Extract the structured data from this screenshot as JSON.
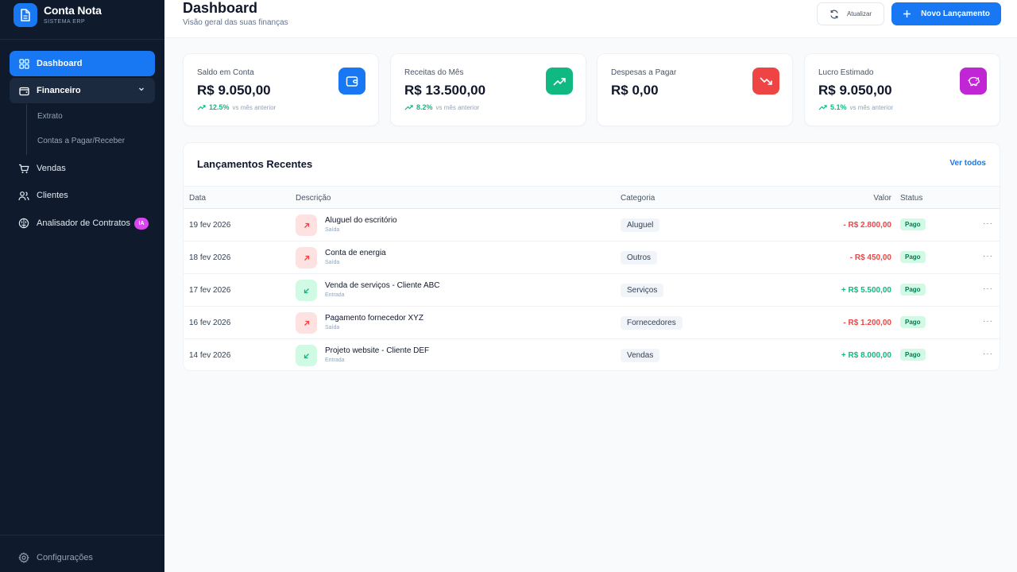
{
  "brand": {
    "name": "Conta Nota",
    "subtitle": "SISTEMA ERP"
  },
  "sidebar": {
    "items": [
      {
        "label": "Dashboard",
        "icon": "grid-icon"
      },
      {
        "label": "Financeiro",
        "icon": "wallet-icon"
      },
      {
        "label": "Vendas",
        "icon": "cart-icon"
      },
      {
        "label": "Clientes",
        "icon": "users-icon"
      },
      {
        "label": "Analisador de Contratos",
        "icon": "brain-icon",
        "badge": "IA"
      }
    ],
    "subitems": [
      {
        "label": "Extrato"
      },
      {
        "label": "Contas a Pagar/Receber"
      }
    ],
    "settings_label": "Configurações"
  },
  "header": {
    "title": "Dashboard",
    "subtitle": "Visão geral das suas finanças",
    "refresh_label": "Atualizar",
    "new_label": "Novo Lançamento"
  },
  "cards": [
    {
      "label": "Saldo em Conta",
      "value": "R$ 9.050,00",
      "trend": "12.5%",
      "trend_note": "vs mês anterior",
      "icon": "wallet-icon",
      "color": "#1877f2"
    },
    {
      "label": "Receitas do Mês",
      "value": "R$ 13.500,00",
      "trend": "8.2%",
      "trend_note": "vs mês anterior",
      "icon": "trending-up-icon",
      "color": "#10b981"
    },
    {
      "label": "Despesas a Pagar",
      "value": "R$ 0,00",
      "trend": "",
      "trend_note": "",
      "icon": "trending-down-icon",
      "color": "#ef4444"
    },
    {
      "label": "Lucro Estimado",
      "value": "R$ 9.050,00",
      "trend": "5.1%",
      "trend_note": "vs mês anterior",
      "icon": "piggy-bank-icon",
      "color": "#c026d3"
    }
  ],
  "transactions": {
    "title": "Lançamentos Recentes",
    "view_all": "Ver todos",
    "columns": [
      "Data",
      "Descrição",
      "Categoria",
      "Valor",
      "Status"
    ],
    "rows": [
      {
        "date": "19 fev 2026",
        "desc": "Aluguel do escritório",
        "type": "Saída",
        "direction": "out",
        "category": "Aluguel",
        "value": "- R$ 2.800,00",
        "status": "Pago",
        "more": "···"
      },
      {
        "date": "18 fev 2026",
        "desc": "Conta de energia",
        "type": "Saída",
        "direction": "out",
        "category": "Outros",
        "value": "- R$ 450,00",
        "status": "Pago",
        "more": "···"
      },
      {
        "date": "17 fev 2026",
        "desc": "Venda de serviços - Cliente ABC",
        "type": "Entrada",
        "direction": "in",
        "category": "Serviços",
        "value": "+ R$ 5.500,00",
        "status": "Pago",
        "more": "···"
      },
      {
        "date": "16 fev 2026",
        "desc": "Pagamento fornecedor XYZ",
        "type": "Saída",
        "direction": "out",
        "category": "Fornecedores",
        "value": "- R$ 1.200,00",
        "status": "Pago",
        "more": "···"
      },
      {
        "date": "14 fev 2026",
        "desc": "Projeto website - Cliente DEF",
        "type": "Entrada",
        "direction": "in",
        "category": "Vendas",
        "value": "+ R$ 8.000,00",
        "status": "Pago",
        "more": "···"
      }
    ]
  }
}
